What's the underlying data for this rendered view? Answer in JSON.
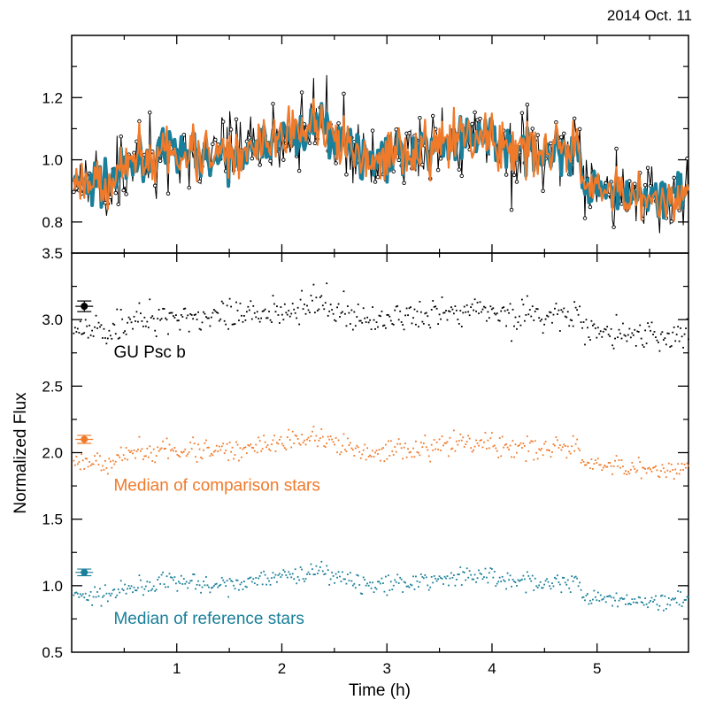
{
  "figure": {
    "date_label": "2014 Oct. 11",
    "xlabel": "Time (h)",
    "ylabel": "Normalized Flux"
  },
  "colors": {
    "target": "#000000",
    "comparison": "#f07a2a",
    "reference": "#1a7f9a"
  },
  "chart_data": [
    {
      "type": "line",
      "panel": "top",
      "title": "",
      "xlabel": "",
      "ylabel": "",
      "xlim": [
        0,
        5.87
      ],
      "ylim": [
        0.7,
        1.4
      ],
      "x_ticks": [
        1,
        2,
        3,
        4,
        5
      ],
      "y_ticks": [
        0.8,
        1.0,
        1.2
      ],
      "y_tick_labels": [
        "0.8",
        "1.0",
        "1.2"
      ],
      "grid": false,
      "series": [
        {
          "name": "GU Psc b",
          "style": "line+circles",
          "color_key": "target",
          "noise": 0.06
        },
        {
          "name": "Median of comparison stars",
          "style": "thick-line",
          "color_key": "comparison",
          "noise": 0.035
        },
        {
          "name": "Median of reference stars",
          "style": "thick-line",
          "color_key": "reference",
          "noise": 0.025
        }
      ],
      "trend": {
        "x": [
          0,
          0.3,
          0.6,
          1.0,
          1.5,
          2.0,
          2.4,
          2.8,
          3.3,
          3.8,
          4.3,
          4.8,
          4.9,
          5.3,
          5.87
        ],
        "y": [
          0.93,
          0.92,
          0.99,
          1.03,
          1.0,
          1.08,
          1.11,
          1.0,
          1.03,
          1.08,
          1.03,
          1.03,
          0.9,
          0.88,
          0.87
        ]
      }
    },
    {
      "type": "scatter",
      "panel": "bottom",
      "title": "",
      "xlabel": "Time (h)",
      "ylabel": "Normalized Flux",
      "xlim": [
        0,
        5.87
      ],
      "ylim": [
        0.5,
        3.5
      ],
      "x_ticks": [
        1,
        2,
        3,
        4,
        5
      ],
      "x_tick_labels": [
        "1",
        "2",
        "3",
        "4",
        "5"
      ],
      "y_ticks": [
        0.5,
        1.0,
        1.5,
        2.0,
        2.5,
        3.0,
        3.5
      ],
      "y_tick_labels": [
        "0.5",
        "1.0",
        "1.5",
        "2.0",
        "2.5",
        "3.0",
        "3.5"
      ],
      "grid": false,
      "series": [
        {
          "name": "GU Psc b",
          "offset": 2.0,
          "color_key": "target",
          "noise": 0.06,
          "error_bar": {
            "x": 0.12,
            "y": 3.1,
            "err": 0.04
          }
        },
        {
          "name": "Median of comparison stars",
          "offset": 1.0,
          "color_key": "comparison",
          "noise": 0.035,
          "error_bar": {
            "x": 0.12,
            "y": 2.1,
            "err": 0.03
          }
        },
        {
          "name": "Median of reference stars",
          "offset": 0.0,
          "color_key": "reference",
          "noise": 0.025,
          "error_bar": {
            "x": 0.12,
            "y": 1.1,
            "err": 0.025
          }
        }
      ],
      "annotations": [
        {
          "text": "GU Psc b",
          "x": 0.4,
          "y": 2.76,
          "color_key": "target"
        },
        {
          "text": "Median of comparison stars",
          "x": 0.4,
          "y": 1.76,
          "color_key": "comparison"
        },
        {
          "text": "Median of reference stars",
          "x": 0.4,
          "y": 0.76,
          "color_key": "reference"
        }
      ]
    }
  ]
}
